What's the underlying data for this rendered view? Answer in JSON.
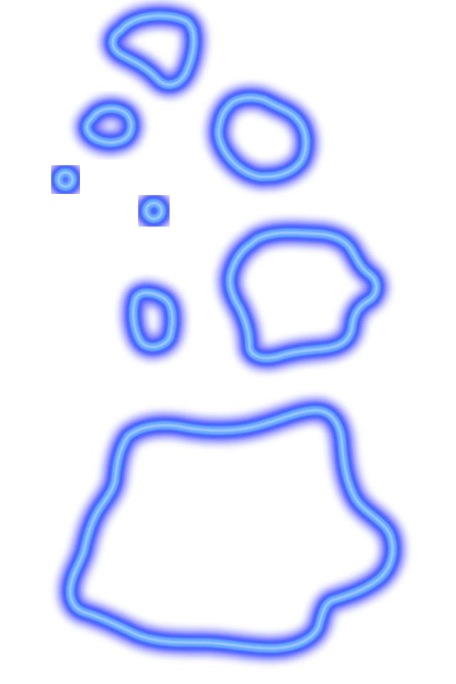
{
  "canvas": {
    "background": "#ffffff"
  },
  "style": {
    "glow_outer": "#0000ff",
    "glow_mid": "#3b5cff",
    "core": "#66a8ff",
    "highlight": "#dff0ff"
  },
  "shapes": [
    {
      "name": "top-blob",
      "kind": "outline"
    },
    {
      "name": "small-blob-left",
      "kind": "outline"
    },
    {
      "name": "dot-1",
      "kind": "ring"
    },
    {
      "name": "dot-2",
      "kind": "ring"
    },
    {
      "name": "small-blob-mid",
      "kind": "outline"
    },
    {
      "name": "right-blob-upper",
      "kind": "outline"
    },
    {
      "name": "right-blob-lower",
      "kind": "outline"
    },
    {
      "name": "large-blob-bottom",
      "kind": "outline"
    }
  ]
}
